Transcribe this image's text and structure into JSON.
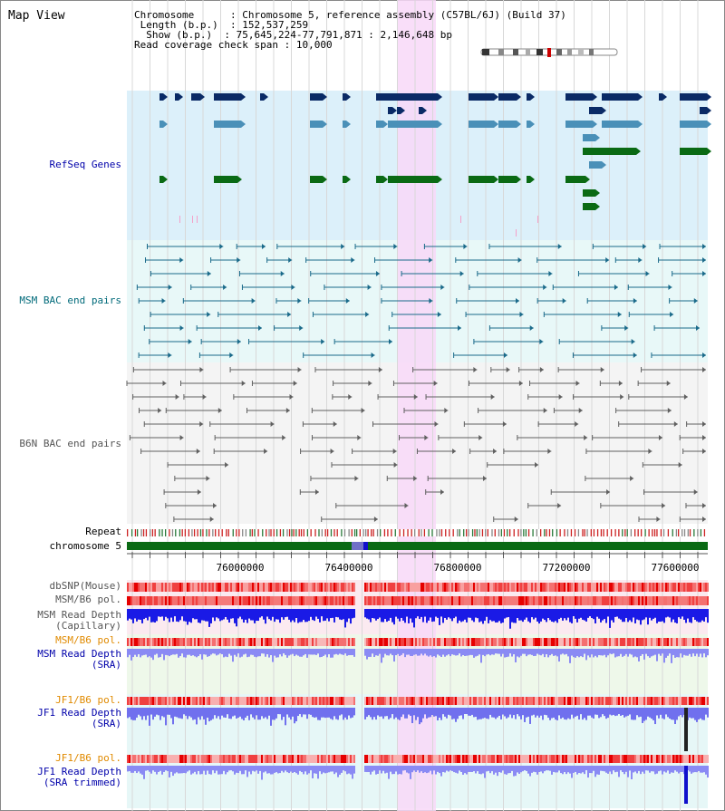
{
  "title": "Map View",
  "info": {
    "chromosome_key": "Chromosome",
    "chromosome_val": "Chromosome 5, reference assembly (C57BL/6J) (Build 37)",
    "length_key": "Length (b.p.)",
    "length_val": "152,537,259",
    "show_key": "Show (b.p.)",
    "show_val": "75,645,224-77,791,871 : 2,146,648 bp",
    "span_key": "Read coverage check span",
    "span_val": "10,000"
  },
  "axis_ticks": [
    "76000000",
    "76400000",
    "76800000",
    "77200000",
    "77600000"
  ],
  "tracks": {
    "refseq": "RefSeq Genes",
    "msm_bac": "MSM BAC end pairs",
    "b6n_bac": "B6N BAC end pairs",
    "repeat": "Repeat",
    "chromosome": "chromosome 5",
    "dbsnp": "dbSNP(Mouse)",
    "msm_b6_pol": "MSM/B6 pol.",
    "msm_depth_cap_1": "MSM Read Depth",
    "msm_depth_cap_2": "(Capillary)",
    "msm_b6_pol2": "MSM/B6 pol.",
    "msm_depth_sra_1": "MSM Read Depth",
    "msm_depth_sra_2": "(SRA)",
    "jf1_b6_pol": "JF1/B6 pol.",
    "jf1_depth_sra_1": "JF1 Read Depth",
    "jf1_depth_sra_2": "(SRA)",
    "jf1_b6_pol2": "JF1/B6 pol.",
    "jf1_depth_trim_1": "JF1 Read Depth",
    "jf1_depth_trim_2": "(SRA trimmed)"
  },
  "colors": {
    "refseq_bg": "#dcf0fa",
    "msm_bg": "#e8f8f8",
    "b6n_bg": "#f4f4f4",
    "highlight": "#f8d8f8",
    "gene_navy": "#0a2a66",
    "gene_steel": "#4a90b8",
    "gene_green": "#0a6a14",
    "msm_line": "#1a6a8a",
    "b6n_line": "#606060",
    "label_blue": "#0000aa",
    "label_teal": "#006a7a",
    "label_grey": "#555555",
    "label_orange": "#e08a00"
  }
}
